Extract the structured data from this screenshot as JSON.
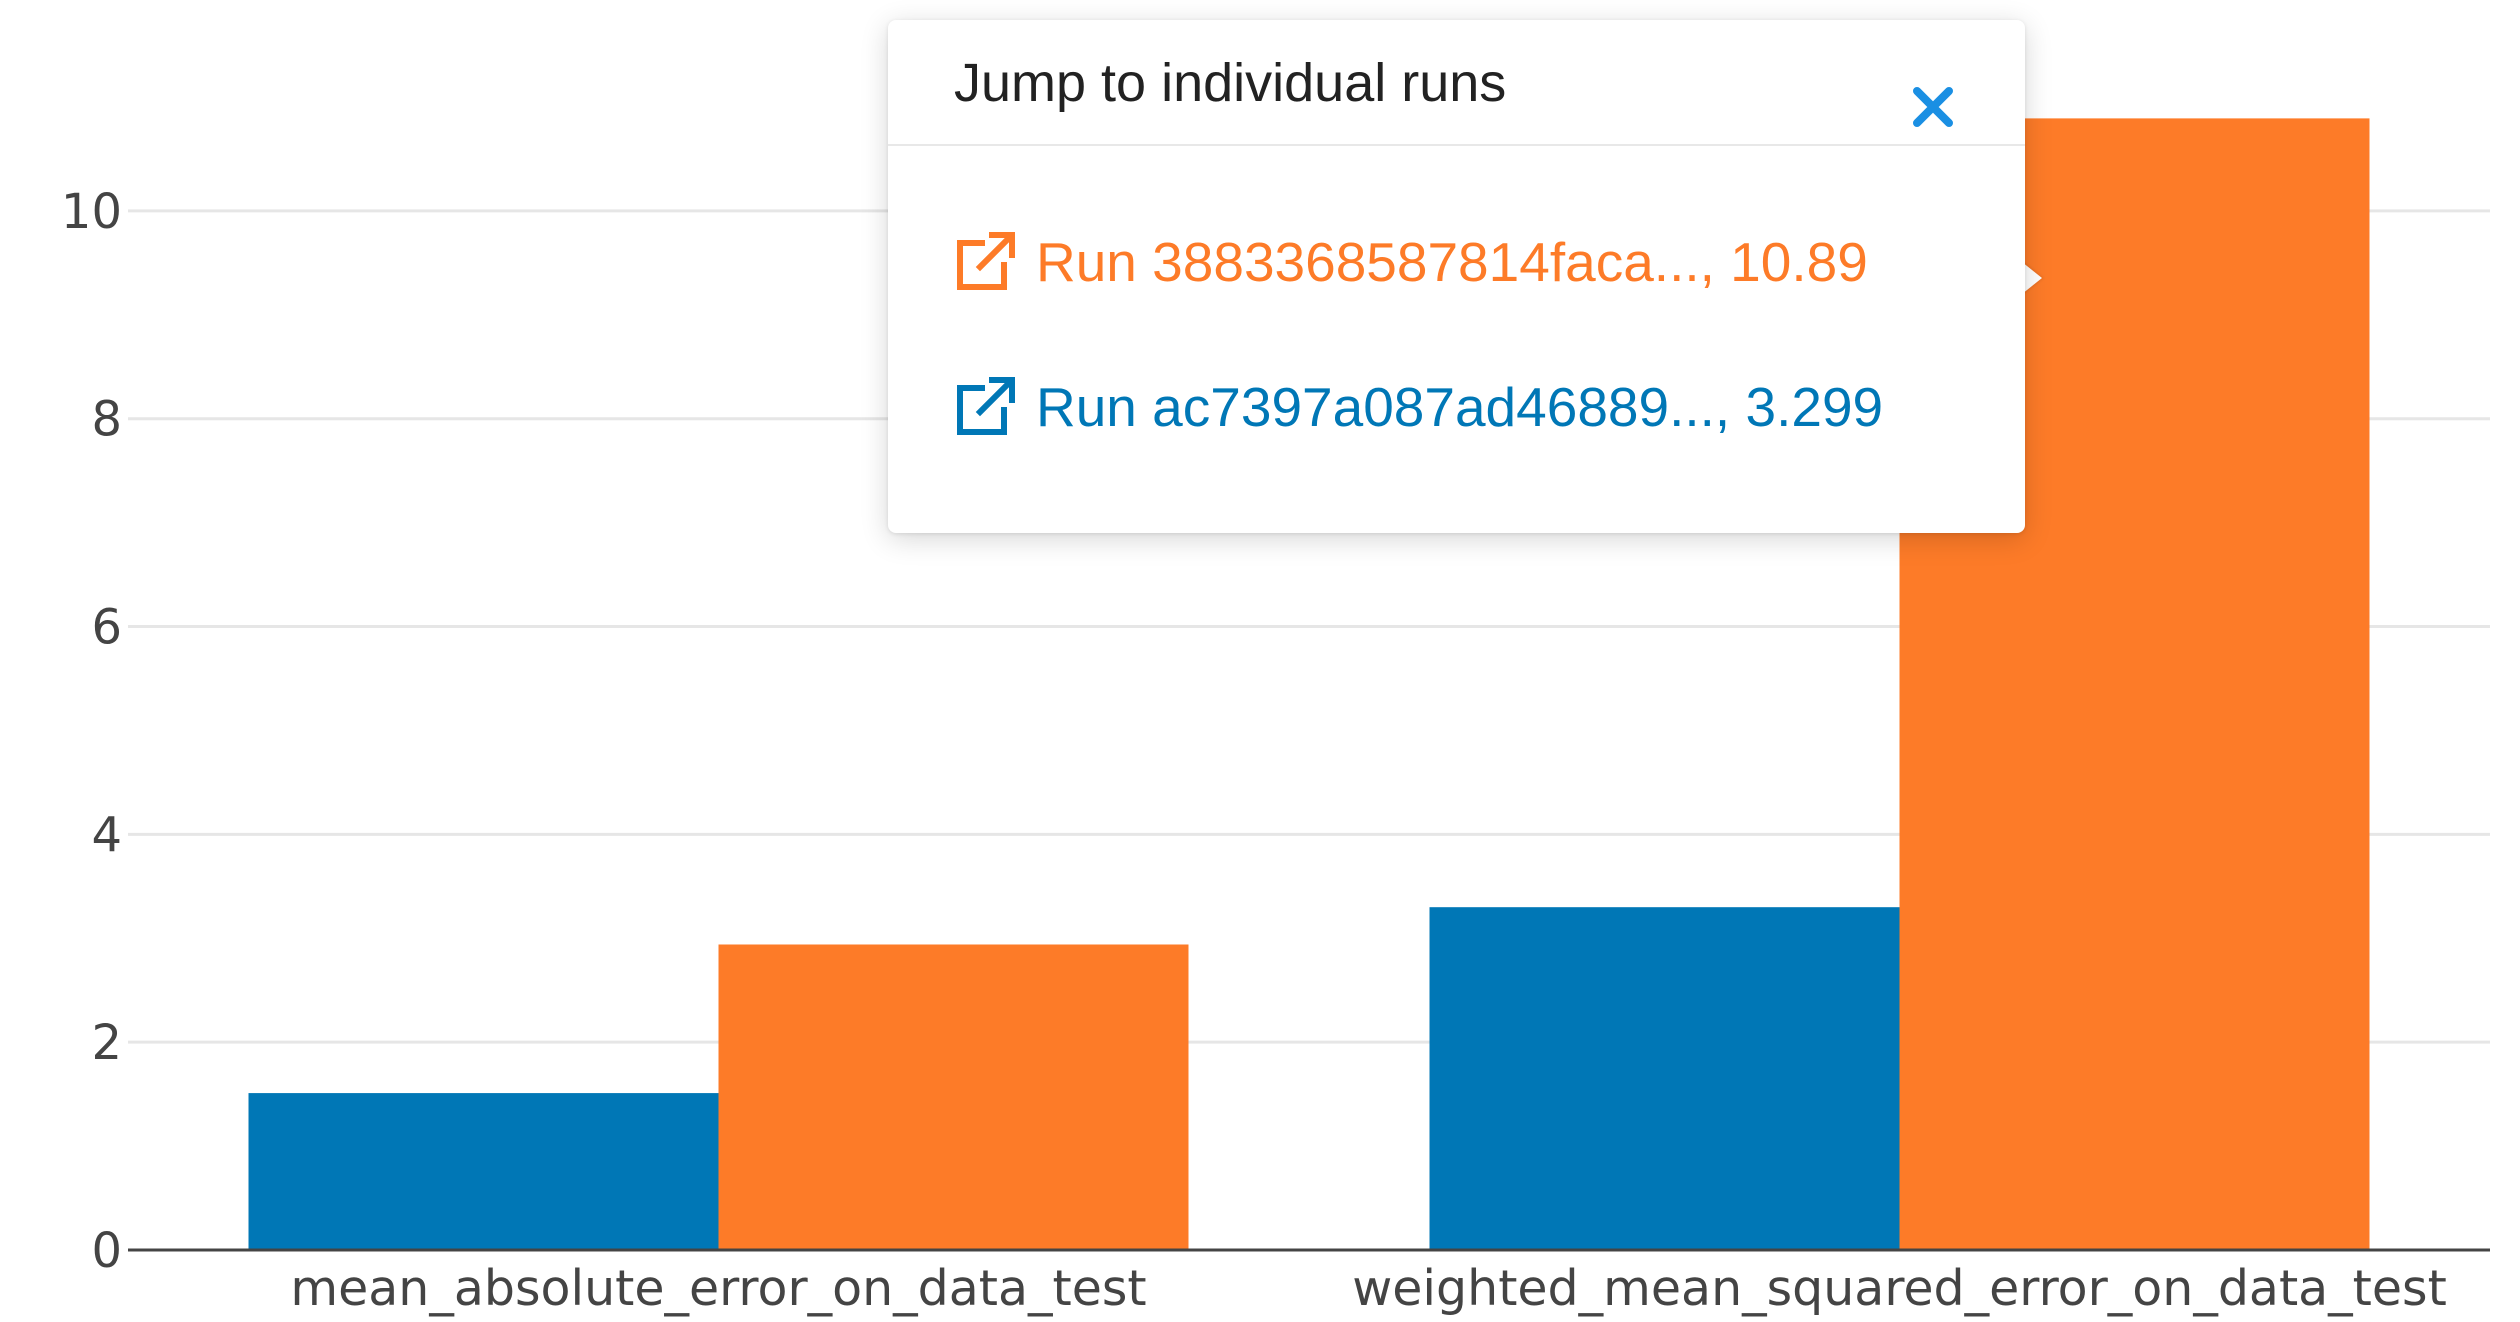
{
  "chart_data": {
    "type": "bar",
    "categories": [
      "mean_absolute_error_on_data_test",
      "weighted_mean_squared_error_on_data_test"
    ],
    "series": [
      {
        "values": [
          1.51,
          3.299
        ],
        "color": "#0077b6"
      },
      {
        "values": [
          2.94,
          10.89
        ],
        "color": "#fd7b28"
      }
    ],
    "yticks": [
      0,
      2,
      4,
      6,
      8,
      10
    ],
    "ylim": [
      0,
      11.5
    ],
    "grid": true,
    "legend": false
  },
  "popup": {
    "title": "Jump to individual runs",
    "close_icon": "close-x-icon",
    "close_color": "#1a8fe3",
    "links": [
      {
        "label": "Run 3883368587814faca..., 10.89",
        "icon": "external-link-icon",
        "color": "#fd7b28"
      },
      {
        "label": "Run ac7397a087ad46889..., 3.299",
        "icon": "external-link-icon",
        "color": "#0077b6"
      }
    ]
  }
}
